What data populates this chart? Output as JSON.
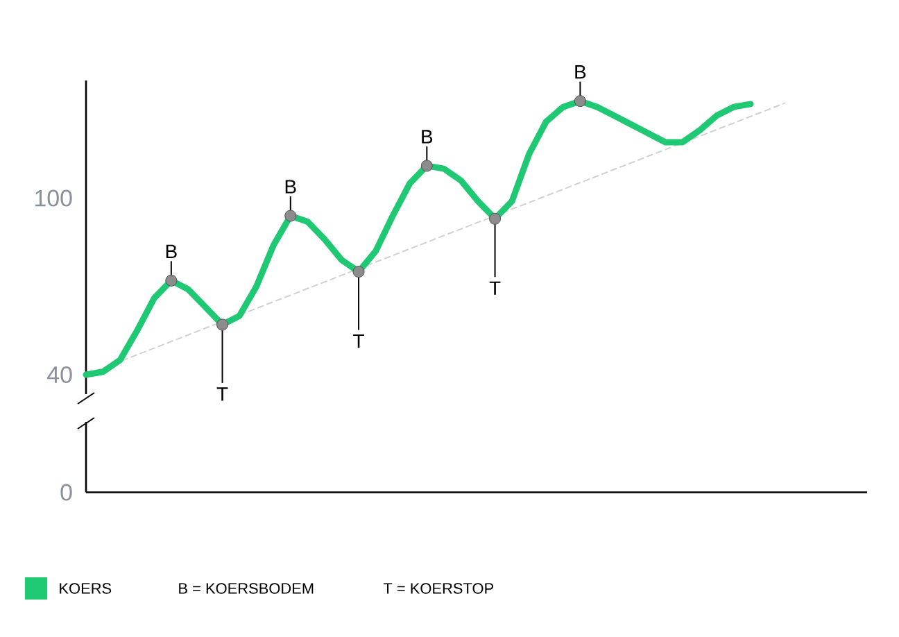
{
  "chart_data": {
    "type": "line",
    "categories": [
      null,
      null,
      null,
      null,
      null,
      null,
      null,
      null,
      null,
      null,
      null,
      null,
      null,
      null,
      null,
      null,
      null,
      null,
      null,
      null,
      null,
      null,
      null,
      null,
      null,
      null,
      null,
      null,
      null,
      null,
      null,
      null,
      null,
      null,
      null,
      null,
      null,
      null,
      null,
      null,
      null,
      null
    ],
    "ylim": [
      0,
      140
    ],
    "yticks": [
      0,
      40,
      100
    ],
    "tick_labels": "y",
    "legend": "bottom left",
    "series": [
      {
        "name": "KOERS",
        "color": "#1fc872",
        "values": [
          40,
          41,
          45,
          55,
          66,
          72,
          69,
          63,
          57,
          60,
          70,
          84,
          94,
          92,
          86,
          79,
          75,
          82,
          94,
          105,
          111,
          110,
          106,
          99,
          93,
          99,
          115,
          126,
          131,
          133,
          131,
          128,
          125,
          122,
          119,
          119,
          123,
          128,
          131,
          132,
          null,
          null
        ]
      },
      {
        "color": "#d0d0d0",
        "line_style": "dashed",
        "values": [
          40,
          42.3,
          44.5,
          46.8,
          49,
          51.3,
          53.5,
          55.8,
          58,
          60.3,
          62.5,
          64.8,
          67,
          69.3,
          71.5,
          73.8,
          76,
          78.3,
          80.5,
          82.8,
          85,
          87.3,
          89.5,
          91.8,
          94,
          96.3,
          98.5,
          100.8,
          103,
          105.3,
          107.5,
          109.8,
          112,
          114.3,
          116.5,
          118.8,
          121,
          123.3,
          125.5,
          127.8,
          130,
          132.3
        ]
      }
    ],
    "annotations": [
      "B = KOERSBODEM",
      "T = KOERSTOP",
      {
        "text": "B",
        "y": 72
      },
      {
        "text": "T",
        "y": 57
      },
      {
        "text": "B",
        "y": 94
      },
      {
        "text": "T",
        "y": 75
      },
      {
        "text": "B",
        "y": 111
      },
      {
        "text": "T",
        "y": 93
      },
      {
        "text": "B",
        "y": 133
      }
    ]
  }
}
